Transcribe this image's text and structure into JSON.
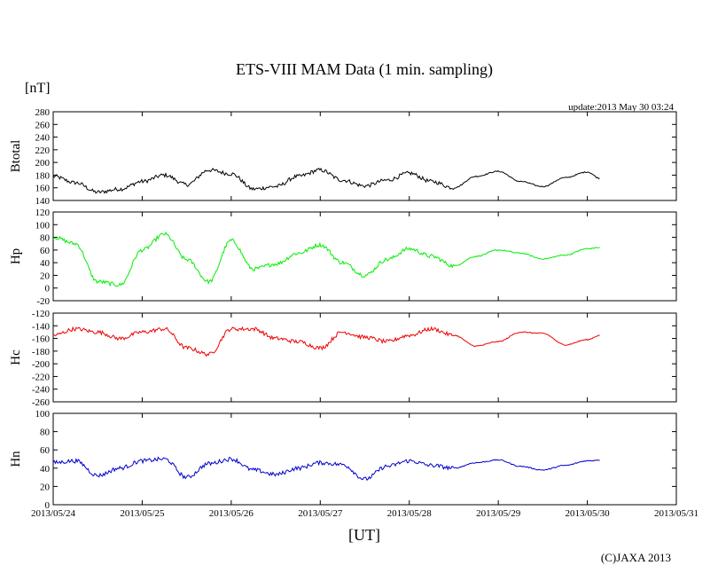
{
  "header": {
    "unit_label": "[nT]",
    "update_text": "update:2013 May 30 03:24"
  },
  "footer": {
    "x_unit_label": "[UT]",
    "copyright": "(C)JAXA 2013"
  },
  "chart_data": {
    "type": "line",
    "title": "ETS-VIII MAM Data (1 min. sampling)",
    "xlabel": "[UT]",
    "ylabel": "[nT]",
    "xlim": [
      0,
      7
    ],
    "x_tick_labels": [
      "2013/05/24",
      "2013/05/25",
      "2013/05/26",
      "2013/05/27",
      "2013/05/28",
      "2013/05/29",
      "2013/05/30",
      "2013/05/31"
    ],
    "x": [
      0,
      0.25,
      0.5,
      0.75,
      1,
      1.25,
      1.5,
      1.75,
      2,
      2.25,
      2.5,
      2.75,
      3,
      3.25,
      3.5,
      3.75,
      4,
      4.25,
      4.5,
      4.75,
      5,
      5.25,
      5.5,
      5.75,
      6,
      6.14
    ],
    "series": [
      {
        "name": "Btotal",
        "color": "#000000",
        "ylim": [
          140,
          280
        ],
        "yticks": [
          140,
          160,
          180,
          200,
          220,
          240,
          260,
          280
        ],
        "values": [
          178,
          168,
          153,
          158,
          170,
          180,
          165,
          188,
          182,
          158,
          162,
          178,
          188,
          172,
          163,
          172,
          183,
          170,
          160,
          178,
          186,
          170,
          162,
          176,
          185,
          175
        ]
      },
      {
        "name": "Hp",
        "color": "#00ee00",
        "ylim": [
          -20,
          120
        ],
        "yticks": [
          -20,
          0,
          20,
          40,
          60,
          80,
          100,
          120
        ],
        "values": [
          80,
          70,
          10,
          5,
          60,
          85,
          45,
          10,
          75,
          30,
          38,
          55,
          68,
          40,
          20,
          45,
          62,
          50,
          35,
          50,
          60,
          55,
          46,
          52,
          62,
          64
        ]
      },
      {
        "name": "Hc",
        "color": "#ee0000",
        "ylim": [
          -260,
          -120
        ],
        "yticks": [
          -120,
          -140,
          -160,
          -180,
          -200,
          -220,
          -240,
          -260
        ],
        "values": [
          -155,
          -145,
          -150,
          -160,
          -150,
          -145,
          -175,
          -185,
          -145,
          -145,
          -160,
          -165,
          -175,
          -150,
          -158,
          -165,
          -155,
          -145,
          -155,
          -172,
          -165,
          -150,
          -152,
          -170,
          -162,
          -155
        ]
      },
      {
        "name": "Hn",
        "color": "#0000cc",
        "ylim": [
          0,
          100
        ],
        "yticks": [
          0,
          20,
          40,
          60,
          80,
          100
        ],
        "values": [
          46,
          48,
          32,
          40,
          48,
          50,
          30,
          45,
          50,
          38,
          33,
          40,
          46,
          44,
          28,
          42,
          48,
          43,
          40,
          46,
          49,
          42,
          38,
          43,
          48,
          49
        ]
      }
    ]
  }
}
